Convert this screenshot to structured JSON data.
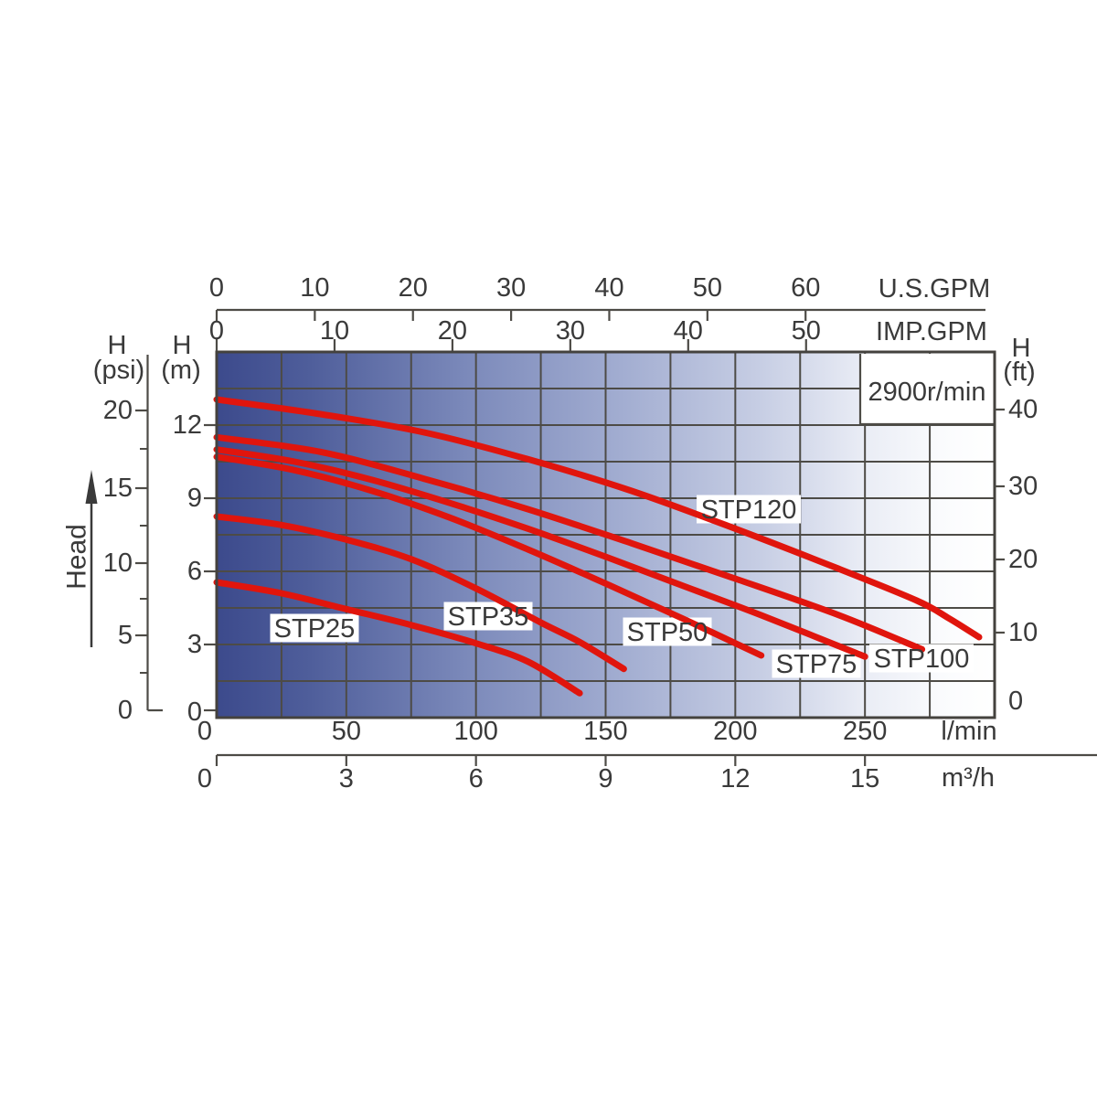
{
  "chart_data": {
    "type": "line",
    "speed_label": "2900r/min",
    "head_direction_label": "Head",
    "x_range_lpm": [
      0,
      300
    ],
    "y_range_m": [
      0,
      15
    ],
    "grid": {
      "x_step_lpm": 25,
      "y_step_m": 1.5
    },
    "x_axes": [
      {
        "id": "us_gpm",
        "unit_label": "U.S.GPM",
        "position": "top",
        "lpm_per_unit": 3.785,
        "ticks": [
          0,
          10,
          20,
          30,
          40,
          50,
          60
        ]
      },
      {
        "id": "imp_gpm",
        "unit_label": "IMP.GPM",
        "position": "top",
        "lpm_per_unit": 4.546,
        "ticks": [
          0,
          10,
          20,
          30,
          40,
          50
        ]
      },
      {
        "id": "lpm",
        "unit_label": "l/min",
        "position": "bottom",
        "lpm_per_unit": 1,
        "ticks": [
          0,
          50,
          100,
          150,
          200,
          250
        ]
      },
      {
        "id": "m3h",
        "unit_label": "m³/h",
        "position": "bottom",
        "lpm_per_unit": 16.6667,
        "ticks": [
          0,
          3,
          6,
          9,
          12,
          15
        ]
      }
    ],
    "y_axes": [
      {
        "id": "psi",
        "name": "H",
        "unit": "(psi)",
        "ticks": [
          20,
          15,
          10,
          5,
          0
        ]
      },
      {
        "id": "m",
        "name": "H",
        "unit": "(m)",
        "ticks": [
          12,
          9,
          6,
          3,
          0
        ]
      },
      {
        "id": "ft",
        "name": "H",
        "unit": "(ft)",
        "ticks": [
          40,
          30,
          20,
          10,
          0
        ]
      }
    ],
    "series": [
      {
        "name": "STP25",
        "points": [
          [
            0,
            5.55
          ],
          [
            25,
            5.1
          ],
          [
            50,
            4.45
          ],
          [
            75,
            3.8
          ],
          [
            100,
            3.05
          ],
          [
            120,
            2.3
          ],
          [
            140,
            1.0
          ]
        ]
      },
      {
        "name": "STP35",
        "points": [
          [
            0,
            8.25
          ],
          [
            25,
            7.9
          ],
          [
            50,
            7.3
          ],
          [
            75,
            6.5
          ],
          [
            100,
            5.3
          ],
          [
            125,
            3.9
          ],
          [
            140,
            3.1
          ],
          [
            157,
            2.0
          ]
        ]
      },
      {
        "name": "STP50",
        "points": [
          [
            0,
            10.7
          ],
          [
            30,
            10.15
          ],
          [
            60,
            9.3
          ],
          [
            90,
            8.2
          ],
          [
            120,
            6.9
          ],
          [
            150,
            5.5
          ],
          [
            180,
            4.05
          ],
          [
            210,
            2.55
          ]
        ]
      },
      {
        "name": "STP75",
        "points": [
          [
            0,
            11.0
          ],
          [
            30,
            10.5
          ],
          [
            60,
            9.75
          ],
          [
            90,
            8.8
          ],
          [
            120,
            7.75
          ],
          [
            150,
            6.6
          ],
          [
            180,
            5.4
          ],
          [
            210,
            4.2
          ],
          [
            250,
            2.5
          ]
        ]
      },
      {
        "name": "STP100",
        "points": [
          [
            0,
            11.5
          ],
          [
            40,
            10.9
          ],
          [
            80,
            9.8
          ],
          [
            120,
            8.55
          ],
          [
            160,
            7.15
          ],
          [
            200,
            5.7
          ],
          [
            240,
            4.2
          ],
          [
            272,
            2.8
          ]
        ]
      },
      {
        "name": "STP120",
        "points": [
          [
            0,
            13.05
          ],
          [
            40,
            12.45
          ],
          [
            80,
            11.7
          ],
          [
            120,
            10.6
          ],
          [
            160,
            9.3
          ],
          [
            200,
            7.75
          ],
          [
            240,
            6.1
          ],
          [
            270,
            4.8
          ],
          [
            282,
            4.1
          ],
          [
            294,
            3.3
          ]
        ]
      }
    ]
  },
  "colors": {
    "curve": "#e0150d",
    "grid": "#4d4b46",
    "border": "#44423e",
    "text": "#3a3a3a",
    "label_bg": "#ffffff",
    "plot_gradient": [
      "#3c4a8c",
      "#4f5e9b",
      "#7b89ba",
      "#a2add1",
      "#c7cee4",
      "#e9ecf5",
      "#fafbfd",
      "#ffffff"
    ]
  }
}
